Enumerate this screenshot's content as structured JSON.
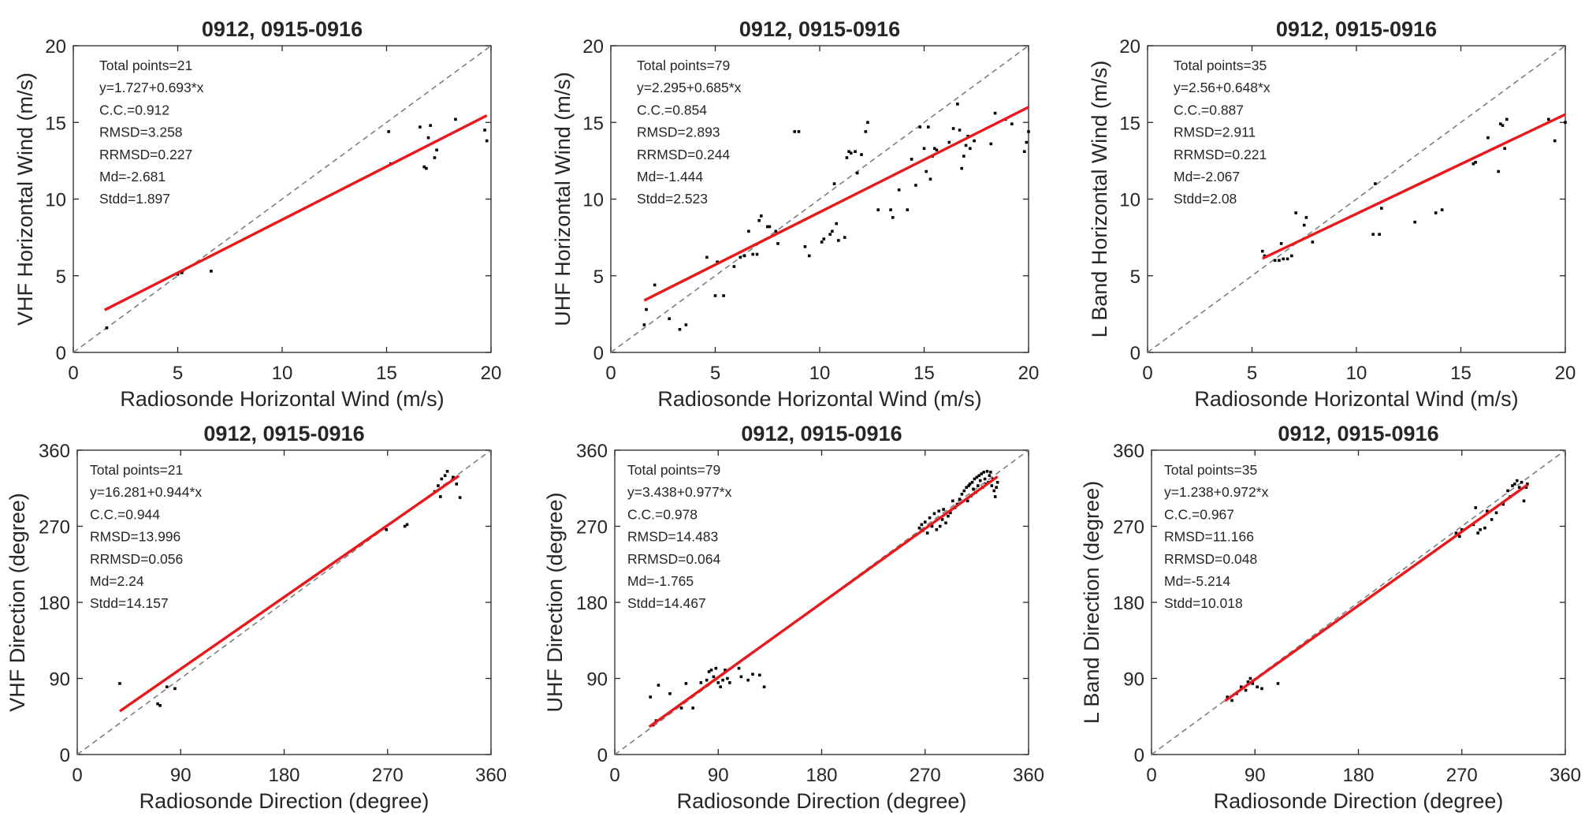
{
  "chart_data": [
    {
      "type": "scatter",
      "title": "0912, 0915-0916",
      "xlabel": "Radiosonde Horizontal Wind (m/s)",
      "ylabel": "VHF Horizontal Wind (m/s)",
      "xlim": [
        0,
        20
      ],
      "ylim": [
        0,
        20
      ],
      "xticks": [
        0,
        5,
        10,
        15,
        20
      ],
      "yticks": [
        0,
        5,
        10,
        15,
        20
      ],
      "fit": {
        "intercept": 1.727,
        "slope": 0.693,
        "x_range": [
          1.5,
          19.8
        ],
        "color": "#e8191d"
      },
      "reference_line": {
        "type": "y=x",
        "color": "#7f7f7f"
      },
      "annotation": [
        "Total points=21",
        "y=1.727+0.693*x",
        "C.C.=0.912",
        "RMSD=3.258",
        "RRMSD=0.227",
        "Md=-2.681",
        "Stdd=1.897"
      ],
      "points": [
        [
          1.6,
          1.6
        ],
        [
          5.0,
          5.1
        ],
        [
          5.2,
          5.2
        ],
        [
          6.6,
          5.3
        ],
        [
          15.1,
          14.4
        ],
        [
          15.2,
          12.3
        ],
        [
          16.6,
          14.7
        ],
        [
          16.8,
          12.1
        ],
        [
          16.9,
          12.0
        ],
        [
          17.0,
          14.0
        ],
        [
          17.1,
          14.8
        ],
        [
          17.3,
          12.7
        ],
        [
          17.4,
          13.2
        ],
        [
          18.3,
          15.2
        ],
        [
          19.7,
          14.5
        ],
        [
          19.8,
          13.8
        ]
      ]
    },
    {
      "type": "scatter",
      "title": "0912, 0915-0916",
      "xlabel": "Radiosonde Horizontal Wind (m/s)",
      "ylabel": "UHF Horizontal Wind (m/s)",
      "xlim": [
        0,
        20
      ],
      "ylim": [
        0,
        20
      ],
      "xticks": [
        0,
        5,
        10,
        15,
        20
      ],
      "yticks": [
        0,
        5,
        10,
        15,
        20
      ],
      "fit": {
        "intercept": 2.295,
        "slope": 0.685,
        "x_range": [
          1.6,
          20
        ],
        "color": "#e8191d"
      },
      "reference_line": {
        "type": "y=x",
        "color": "#7f7f7f"
      },
      "annotation": [
        "Total points=79",
        "y=2.295+0.685*x",
        "C.C.=0.854",
        "RMSD=2.893",
        "RRMSD=0.244",
        "Md=-1.444",
        "Stdd=2.523"
      ],
      "points": [
        [
          1.6,
          1.8
        ],
        [
          1.7,
          2.8
        ],
        [
          2.1,
          4.4
        ],
        [
          2.8,
          2.2
        ],
        [
          3.3,
          1.5
        ],
        [
          3.6,
          1.8
        ],
        [
          4.6,
          6.2
        ],
        [
          5.0,
          3.7
        ],
        [
          5.1,
          5.9
        ],
        [
          5.4,
          3.7
        ],
        [
          5.9,
          5.6
        ],
        [
          6.2,
          6.2
        ],
        [
          6.4,
          6.3
        ],
        [
          6.6,
          7.9
        ],
        [
          6.8,
          6.4
        ],
        [
          7.0,
          6.4
        ],
        [
          7.1,
          8.6
        ],
        [
          7.2,
          8.9
        ],
        [
          7.5,
          8.2
        ],
        [
          7.6,
          8.2
        ],
        [
          7.9,
          7.9
        ],
        [
          8.0,
          7.1
        ],
        [
          8.8,
          14.4
        ],
        [
          9.0,
          14.4
        ],
        [
          9.3,
          6.9
        ],
        [
          9.5,
          6.3
        ],
        [
          10.1,
          7.2
        ],
        [
          10.2,
          7.4
        ],
        [
          10.5,
          7.7
        ],
        [
          10.6,
          7.9
        ],
        [
          10.7,
          11.0
        ],
        [
          10.8,
          8.4
        ],
        [
          10.9,
          7.3
        ],
        [
          11.2,
          7.5
        ],
        [
          11.3,
          12.7
        ],
        [
          11.4,
          13.1
        ],
        [
          11.5,
          13.0
        ],
        [
          11.7,
          13.1
        ],
        [
          11.8,
          11.7
        ],
        [
          12.0,
          12.9
        ],
        [
          12.2,
          14.4
        ],
        [
          12.3,
          15.0
        ],
        [
          12.8,
          9.3
        ],
        [
          13.4,
          9.3
        ],
        [
          13.5,
          8.8
        ],
        [
          13.8,
          10.6
        ],
        [
          14.2,
          9.3
        ],
        [
          14.4,
          12.6
        ],
        [
          14.6,
          10.9
        ],
        [
          14.8,
          14.7
        ],
        [
          15.0,
          13.3
        ],
        [
          15.1,
          11.8
        ],
        [
          15.2,
          14.7
        ],
        [
          15.3,
          11.3
        ],
        [
          15.4,
          12.8
        ],
        [
          15.5,
          13.3
        ],
        [
          15.6,
          13.2
        ],
        [
          16.2,
          13.7
        ],
        [
          16.4,
          14.6
        ],
        [
          16.6,
          16.2
        ],
        [
          16.7,
          14.5
        ],
        [
          16.8,
          12.0
        ],
        [
          16.9,
          12.8
        ],
        [
          17.0,
          13.5
        ],
        [
          17.1,
          14.1
        ],
        [
          17.2,
          13.3
        ],
        [
          17.4,
          13.8
        ],
        [
          18.2,
          13.6
        ],
        [
          18.4,
          15.6
        ],
        [
          18.9,
          15.2
        ],
        [
          19.2,
          14.9
        ],
        [
          19.8,
          13.1
        ],
        [
          19.9,
          13.7
        ],
        [
          20.0,
          14.4
        ]
      ]
    },
    {
      "type": "scatter",
      "title": "0912, 0915-0916",
      "xlabel": "Radiosonde Horizontal Wind (m/s)",
      "ylabel": "L Band Horizontal Wind (m/s)",
      "xlim": [
        0,
        20
      ],
      "ylim": [
        0,
        20
      ],
      "xticks": [
        0,
        5,
        10,
        15,
        20
      ],
      "yticks": [
        0,
        5,
        10,
        15,
        20
      ],
      "fit": {
        "intercept": 2.56,
        "slope": 0.648,
        "x_range": [
          5.5,
          20
        ],
        "color": "#e8191d"
      },
      "reference_line": {
        "type": "y=x",
        "color": "#7f7f7f"
      },
      "annotation": [
        "Total points=35",
        "y=2.56+0.648*x",
        "C.C.=0.887",
        "RMSD=2.911",
        "RRMSD=0.221",
        "Md=-2.067",
        "Stdd=2.08"
      ],
      "points": [
        [
          5.5,
          6.6
        ],
        [
          5.6,
          6.3
        ],
        [
          6.1,
          6.0
        ],
        [
          6.3,
          6.0
        ],
        [
          6.4,
          7.1
        ],
        [
          6.5,
          6.1
        ],
        [
          6.7,
          6.1
        ],
        [
          6.9,
          6.3
        ],
        [
          7.1,
          9.1
        ],
        [
          7.5,
          8.3
        ],
        [
          7.6,
          8.8
        ],
        [
          7.9,
          7.2
        ],
        [
          10.8,
          7.7
        ],
        [
          10.9,
          11.0
        ],
        [
          11.1,
          7.7
        ],
        [
          11.2,
          9.4
        ],
        [
          12.8,
          8.5
        ],
        [
          13.8,
          9.1
        ],
        [
          14.1,
          9.3
        ],
        [
          15.6,
          12.3
        ],
        [
          15.7,
          12.4
        ],
        [
          16.3,
          14.0
        ],
        [
          16.8,
          11.8
        ],
        [
          16.9,
          14.9
        ],
        [
          17.0,
          14.8
        ],
        [
          17.1,
          13.3
        ],
        [
          17.2,
          15.2
        ],
        [
          19.2,
          15.2
        ],
        [
          19.5,
          13.8
        ],
        [
          20.0,
          15.0
        ]
      ]
    },
    {
      "type": "scatter",
      "title": "0912, 0915-0916",
      "xlabel": "Radiosonde Direction (degree)",
      "ylabel": "VHF Direction (degree)",
      "xlim": [
        0,
        360
      ],
      "ylim": [
        0,
        360
      ],
      "xticks": [
        0,
        90,
        180,
        270,
        360
      ],
      "yticks": [
        0,
        90,
        180,
        270,
        360
      ],
      "fit": {
        "intercept": 16.281,
        "slope": 0.944,
        "x_range": [
          37,
          332
        ],
        "color": "#e8191d"
      },
      "reference_line": {
        "type": "y=x",
        "color": "#7f7f7f"
      },
      "annotation": [
        "Total points=21",
        "y=16.281+0.944*x",
        "C.C.=0.944",
        "RMSD=13.996",
        "RRMSD=0.056",
        "Md=2.24",
        "Stdd=14.157"
      ],
      "points": [
        [
          37,
          84
        ],
        [
          70,
          60
        ],
        [
          72,
          58
        ],
        [
          78,
          80
        ],
        [
          85,
          78
        ],
        [
          267,
          268
        ],
        [
          269,
          266
        ],
        [
          285,
          270
        ],
        [
          287,
          272
        ],
        [
          311,
          311
        ],
        [
          314,
          318
        ],
        [
          316,
          305
        ],
        [
          317,
          326
        ],
        [
          320,
          330
        ],
        [
          322,
          335
        ],
        [
          327,
          328
        ],
        [
          330,
          320
        ],
        [
          333,
          304
        ]
      ]
    },
    {
      "type": "scatter",
      "title": "0912, 0915-0916",
      "xlabel": "Radiosonde Direction (degree)",
      "ylabel": "UHF Direction (degree)",
      "xlim": [
        0,
        360
      ],
      "ylim": [
        0,
        360
      ],
      "xticks": [
        0,
        90,
        180,
        270,
        360
      ],
      "yticks": [
        0,
        90,
        180,
        270,
        360
      ],
      "fit": {
        "intercept": 3.438,
        "slope": 0.977,
        "x_range": [
          30,
          333
        ],
        "color": "#e8191d"
      },
      "reference_line": {
        "type": "y=x",
        "color": "#7f7f7f"
      },
      "annotation": [
        "Total points=79",
        "y=3.438+0.977*x",
        "C.C.=0.978",
        "RMSD=14.483",
        "RRMSD=0.064",
        "Md=-1.765",
        "Stdd=14.467"
      ],
      "points": [
        [
          31,
          68
        ],
        [
          33,
          35
        ],
        [
          36,
          40
        ],
        [
          38,
          82
        ],
        [
          48,
          72
        ],
        [
          58,
          55
        ],
        [
          62,
          84
        ],
        [
          68,
          55
        ],
        [
          75,
          85
        ],
        [
          80,
          88
        ],
        [
          82,
          98
        ],
        [
          84,
          100
        ],
        [
          86,
          92
        ],
        [
          88,
          102
        ],
        [
          90,
          85
        ],
        [
          92,
          80
        ],
        [
          94,
          88
        ],
        [
          96,
          100
        ],
        [
          98,
          90
        ],
        [
          100,
          85
        ],
        [
          108,
          102
        ],
        [
          110,
          92
        ],
        [
          116,
          88
        ],
        [
          120,
          95
        ],
        [
          126,
          94
        ],
        [
          130,
          80
        ],
        [
          265,
          268
        ],
        [
          267,
          272
        ],
        [
          268,
          265
        ],
        [
          270,
          275
        ],
        [
          272,
          262
        ],
        [
          274,
          280
        ],
        [
          276,
          270
        ],
        [
          278,
          285
        ],
        [
          280,
          266
        ],
        [
          282,
          288
        ],
        [
          283,
          270
        ],
        [
          285,
          278
        ],
        [
          286,
          290
        ],
        [
          288,
          274
        ],
        [
          290,
          282
        ],
        [
          292,
          286
        ],
        [
          294,
          300
        ],
        [
          296,
          292
        ],
        [
          298,
          296
        ],
        [
          300,
          302
        ],
        [
          302,
          308
        ],
        [
          304,
          312
        ],
        [
          306,
          316
        ],
        [
          307,
          300
        ],
        [
          308,
          318
        ],
        [
          309,
          320
        ],
        [
          310,
          306
        ],
        [
          311,
          322
        ],
        [
          312,
          314
        ],
        [
          313,
          326
        ],
        [
          314,
          310
        ],
        [
          315,
          328
        ],
        [
          316,
          318
        ],
        [
          317,
          330
        ],
        [
          318,
          324
        ],
        [
          319,
          332
        ],
        [
          320,
          316
        ],
        [
          321,
          334
        ],
        [
          322,
          326
        ],
        [
          323,
          320
        ],
        [
          324,
          335
        ],
        [
          325,
          322
        ],
        [
          326,
          330
        ],
        [
          327,
          334
        ],
        [
          328,
          318
        ],
        [
          329,
          326
        ],
        [
          330,
          312
        ],
        [
          331,
          305
        ],
        [
          332,
          316
        ],
        [
          333,
          322
        ]
      ]
    },
    {
      "type": "scatter",
      "title": "0912, 0915-0916",
      "xlabel": "Radiosonde Direction (degree)",
      "ylabel": "L Band Direction (degree)",
      "xlim": [
        0,
        360
      ],
      "ylim": [
        0,
        360
      ],
      "xticks": [
        0,
        90,
        180,
        270,
        360
      ],
      "yticks": [
        0,
        90,
        180,
        270,
        360
      ],
      "fit": {
        "intercept": 1.238,
        "slope": 0.972,
        "x_range": [
          64,
          327
        ],
        "color": "#e8191d"
      },
      "reference_line": {
        "type": "y=x",
        "color": "#7f7f7f"
      },
      "annotation": [
        "Total points=35",
        "y=1.238+0.972*x",
        "C.C.=0.967",
        "RMSD=11.166",
        "RRMSD=0.048",
        "Md=-5.214",
        "Stdd=10.018"
      ],
      "points": [
        [
          66,
          68
        ],
        [
          70,
          64
        ],
        [
          74,
          72
        ],
        [
          78,
          80
        ],
        [
          82,
          76
        ],
        [
          84,
          86
        ],
        [
          86,
          90
        ],
        [
          88,
          84
        ],
        [
          92,
          80
        ],
        [
          96,
          78
        ],
        [
          110,
          84
        ],
        [
          265,
          262
        ],
        [
          268,
          258
        ],
        [
          270,
          266
        ],
        [
          280,
          272
        ],
        [
          282,
          292
        ],
        [
          284,
          262
        ],
        [
          286,
          266
        ],
        [
          290,
          268
        ],
        [
          292,
          288
        ],
        [
          296,
          278
        ],
        [
          300,
          286
        ],
        [
          306,
          296
        ],
        [
          310,
          312
        ],
        [
          312,
          305
        ],
        [
          314,
          318
        ],
        [
          316,
          320
        ],
        [
          318,
          324
        ],
        [
          320,
          316
        ],
        [
          322,
          322
        ],
        [
          324,
          300
        ],
        [
          326,
          316
        ],
        [
          327,
          320
        ]
      ]
    }
  ]
}
